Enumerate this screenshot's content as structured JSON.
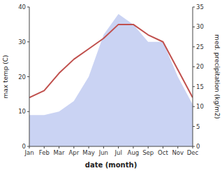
{
  "chart_data": {
    "type": "line",
    "xlabel": "date (month)",
    "ylabel": "max temp (C)",
    "y2label": "med. precipitation (kg/m2)",
    "categories": [
      "Jan",
      "Feb",
      "Mar",
      "Apr",
      "May",
      "Jun",
      "Jul",
      "Aug",
      "Sep",
      "Oct",
      "Nov",
      "Dec"
    ],
    "series": [
      {
        "type": "area",
        "color": "#b8c4ef",
        "values": [
          9,
          9,
          10,
          13,
          20,
          32,
          38,
          35,
          30,
          30,
          20,
          12
        ]
      },
      {
        "type": "line",
        "color": "#c0504d",
        "values": [
          14,
          16,
          21,
          25,
          28,
          31,
          35,
          35,
          32,
          30,
          22,
          14
        ]
      }
    ],
    "ylim": [
      0,
      40
    ],
    "yticks": [
      0,
      10,
      20,
      30,
      40
    ],
    "y2lim": [
      0,
      35
    ],
    "y2ticks": [
      0,
      5,
      10,
      15,
      20,
      25,
      30,
      35
    ],
    "grid": false
  }
}
